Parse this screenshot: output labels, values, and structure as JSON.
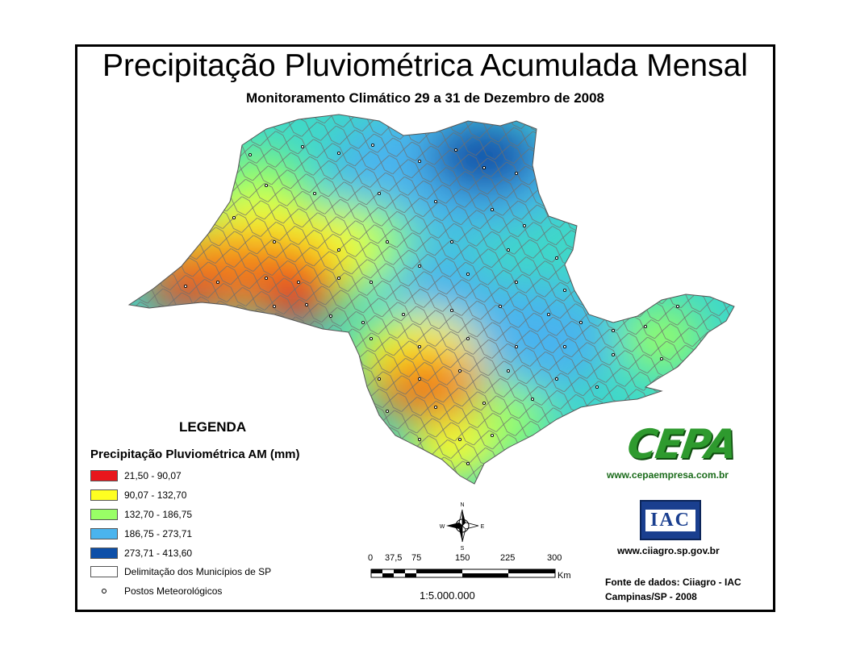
{
  "title": "Precipitação Pluviométrica Acumulada Mensal",
  "subtitle": "Monitoramento Climático 29 a 31 de Dezembro de 2008",
  "legend": {
    "heading": "LEGENDA",
    "subheading": "Precipitação Pluviométrica AM (mm)",
    "classes": [
      {
        "label": "21,50 - 90,07",
        "color": "#e8161c"
      },
      {
        "label": "90,07 - 132,70",
        "color": "#ffff21"
      },
      {
        "label": "132,70 - 186,75",
        "color": "#99ff66"
      },
      {
        "label": "186,75 - 273,71",
        "color": "#4ab4ee"
      },
      {
        "label": "273,71 - 413,60",
        "color": "#0d4fa8"
      }
    ],
    "boundary_label": "Delimitação dos Municípios de SP",
    "stations_label": "Postos Meteorológicos"
  },
  "compass": {
    "n": "N",
    "s": "S",
    "e": "E",
    "w": "W"
  },
  "scale": {
    "ticks": [
      "0",
      "37,5",
      "75",
      "150",
      "225",
      "300"
    ],
    "unit": "Km",
    "ratio": "1:5.000.000"
  },
  "logos": {
    "cepa_text": "CEPA",
    "cepa_url": "www.cepaempresa.com.br",
    "iac_text": "IAC",
    "iac_url": "www.ciiagro.sp.gov.br"
  },
  "source": {
    "line1": "Fonte de dados: Ciiagro - IAC",
    "line2": "Campinas/SP - 2008"
  },
  "colors": {
    "red": "#e8161c",
    "orange": "#f07a1a",
    "yellow": "#ffff21",
    "green": "#99ff66",
    "cyan": "#3fd8c8",
    "lightblue": "#4ab4ee",
    "darkblue": "#0d4fa8",
    "boundaries": "#6e6e6e"
  }
}
